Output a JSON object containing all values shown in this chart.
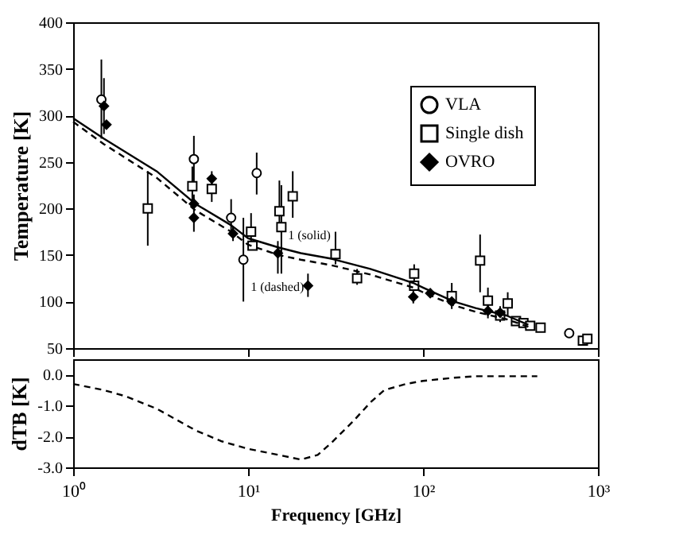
{
  "chart_data": [
    {
      "type": "scatter",
      "ylabel": "Temperature [K]",
      "log": "x",
      "xlim": [
        1,
        1000
      ],
      "ylim": [
        50,
        400
      ],
      "xticks": [
        {
          "value": 1,
          "label": null
        },
        {
          "value": 10,
          "label": null
        },
        {
          "value": 100,
          "label": null
        },
        {
          "value": 1000,
          "label": null
        }
      ],
      "yticks": [
        50,
        100,
        150,
        200,
        250,
        300,
        350,
        400
      ],
      "tick_labels": "y",
      "grid": false,
      "legend": "top right",
      "series": [
        {
          "name": "VLA",
          "color": "#000000",
          "marker": "circle",
          "x": [
            1.45,
            4.9,
            8.0,
            9.4,
            11.2,
            685
          ],
          "values": [
            317,
            253,
            190,
            145,
            238,
            66
          ],
          "errors": [
            [
              275,
              360
            ],
            [
              228,
              278
            ],
            [
              172,
              210
            ],
            [
              100,
              190
            ],
            [
              215,
              260
            ],
            null
          ]
        },
        {
          "name": "Single dish",
          "color": "#000000",
          "marker": "square",
          "x": [
            2.67,
            4.8,
            6.2,
            10.4,
            10.6,
            15.1,
            15.5,
            18,
            31.6,
            42,
            89,
            89,
            146,
            212,
            235,
            276,
            305,
            340,
            375,
            410,
            470,
            820,
            870
          ],
          "values": [
            200,
            224,
            221,
            175,
            160,
            197,
            180,
            213,
            151,
            125,
            130,
            117,
            106,
            144,
            101,
            85,
            98,
            79,
            77,
            74,
            72,
            58,
            60
          ],
          "errors": [
            [
              160,
              240
            ],
            [
              200,
              245
            ],
            [
              207,
              235
            ],
            [
              155,
              195
            ],
            null,
            [
              175,
              230
            ],
            [
              130,
              225
            ],
            [
              190,
              240
            ],
            [
              140,
              175
            ],
            [
              118,
              135
            ],
            [
              115,
              140
            ],
            null,
            [
              95,
              120
            ],
            [
              110,
              172
            ],
            [
              90,
              115
            ],
            [
              78,
              95
            ],
            [
              85,
              110
            ],
            null,
            null,
            null,
            null,
            null,
            null
          ]
        },
        {
          "name": "OVRO",
          "color": "#000000",
          "marker": "diamond",
          "x": [
            1.5,
            1.55,
            4.9,
            4.9,
            6.2,
            8.2,
            14.8,
            22,
            88,
            110,
            146,
            235,
            276
          ],
          "values": [
            310,
            290,
            205,
            190,
            232,
            173,
            152,
            117,
            105,
            109,
            100,
            90,
            88
          ],
          "errors": [
            [
              280,
              340
            ],
            null,
            [
              175,
              215
            ],
            null,
            [
              225,
              240
            ],
            [
              165,
              180
            ],
            [
              130,
              165
            ],
            [
              105,
              130
            ],
            [
              98,
              112
            ],
            [
              104,
              114
            ],
            [
              92,
              112
            ],
            [
              82,
              100
            ],
            null
          ]
        },
        {
          "type": "line",
          "color": "#000000",
          "line_style": "solid",
          "x": [
            1,
            1.5,
            3,
            5,
            8,
            10,
            15,
            20,
            30,
            50,
            88,
            100,
            150,
            200,
            300,
            400
          ],
          "values": [
            297,
            275,
            240,
            205,
            182,
            168,
            158,
            152,
            146,
            135,
            120,
            115,
            100,
            93,
            85,
            75
          ]
        },
        {
          "type": "line",
          "color": "#000000",
          "line_style": "dashed",
          "x": [
            1,
            1.5,
            3,
            5,
            8,
            10,
            15,
            20,
            30,
            50,
            88,
            100,
            150,
            200,
            300,
            400
          ],
          "values": [
            293,
            269,
            233,
            198,
            175,
            161,
            150,
            145,
            139,
            129,
            115,
            110,
            96,
            89,
            81,
            73
          ]
        }
      ],
      "annotations": [
        "1 (solid)",
        "1 (dashed)"
      ]
    },
    {
      "type": "line",
      "xlabel": "Frequency [GHz]",
      "ylabel": "dTB [K]",
      "log": "x",
      "xlim": [
        1,
        1000
      ],
      "ylim": [
        -3,
        0.5
      ],
      "xticks": [
        {
          "value": 1,
          "label": "10⁰"
        },
        {
          "value": 10,
          "label": "10¹"
        },
        {
          "value": 100,
          "label": "10²"
        },
        {
          "value": 1000,
          "label": "10³"
        }
      ],
      "yticks": [
        {
          "value": -3,
          "label": "-3.0"
        },
        {
          "value": -2,
          "label": "-2.0"
        },
        {
          "value": -1,
          "label": "-1.0"
        },
        {
          "value": 0,
          "label": "0.0"
        }
      ],
      "grid": false,
      "series": [
        {
          "color": "#000000",
          "line_style": "dashed",
          "x": [
            1,
            1.5,
            2,
            3,
            5,
            7,
            10,
            15,
            20,
            25,
            30,
            40,
            50,
            60,
            80,
            100,
            150,
            200,
            300,
            450
          ],
          "values": [
            -0.3,
            -0.5,
            -0.7,
            -1.1,
            -1.8,
            -2.15,
            -2.4,
            -2.6,
            -2.75,
            -2.6,
            -2.2,
            -1.5,
            -0.9,
            -0.5,
            -0.3,
            -0.2,
            -0.1,
            -0.05,
            -0.05,
            -0.05
          ]
        }
      ]
    }
  ]
}
